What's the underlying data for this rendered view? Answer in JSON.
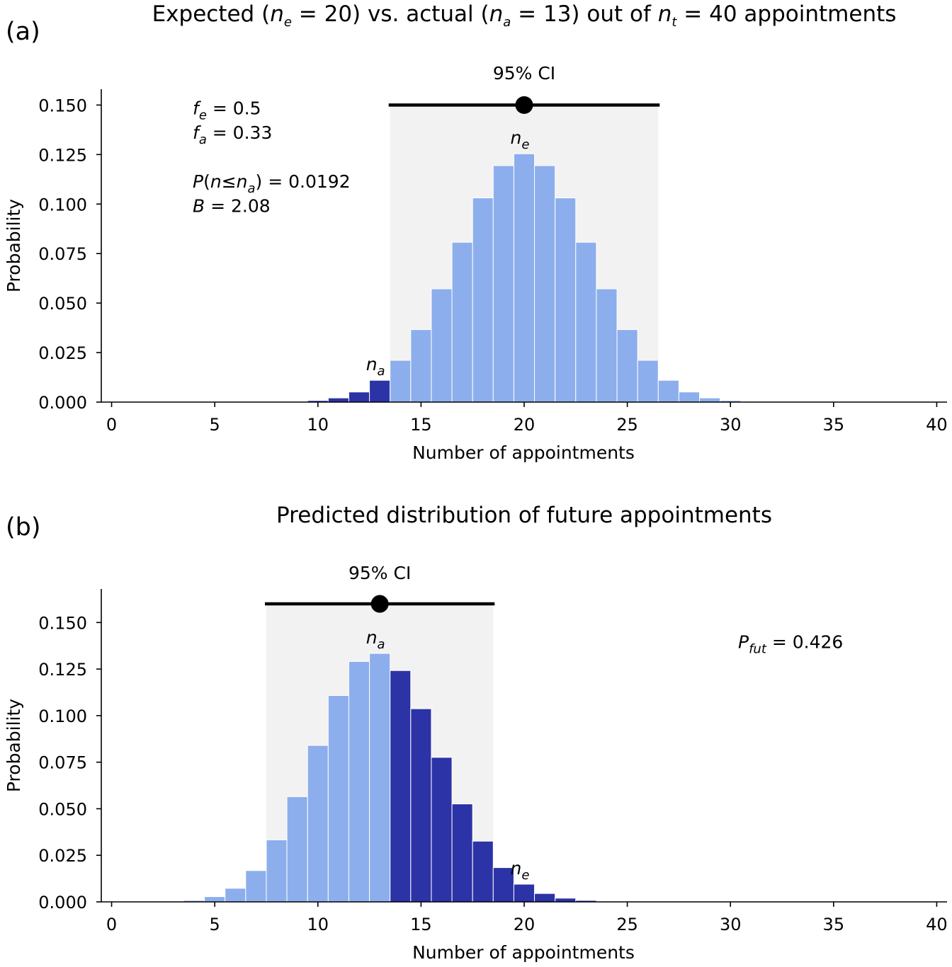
{
  "colors": {
    "light": "#8daeec",
    "dark": "#2c33a6",
    "ci_band": "#f2f2f2",
    "ink": "#000000"
  },
  "chart_data": [
    {
      "type": "bar",
      "panel_label": "(a)",
      "title_parts": [
        "Expected (",
        "n",
        "e",
        " = 20) vs. actual (",
        "n",
        "a",
        " = 13) out of ",
        "n",
        "t",
        " = 40 appointments"
      ],
      "xlabel": "Number of appointments",
      "ylabel": "Probability",
      "xlim": [
        -0.5,
        40.5
      ],
      "ylim": [
        0,
        0.158
      ],
      "xticks": [
        0,
        5,
        10,
        15,
        20,
        25,
        30,
        35,
        40
      ],
      "yticks": [
        0.0,
        0.025,
        0.05,
        0.075,
        0.1,
        0.125,
        0.15
      ],
      "ytick_labels": [
        "0.000",
        "0.025",
        "0.050",
        "0.075",
        "0.100",
        "0.125",
        "0.150"
      ],
      "x": [
        9,
        10,
        11,
        12,
        13,
        14,
        15,
        16,
        17,
        18,
        19,
        20,
        21,
        22,
        23,
        24,
        25,
        26,
        27,
        28,
        29,
        30,
        31
      ],
      "values": [
        0.0002,
        0.0008,
        0.0021,
        0.0051,
        0.011,
        0.0211,
        0.0366,
        0.0572,
        0.0807,
        0.1031,
        0.1194,
        0.1254,
        0.1194,
        0.1031,
        0.0807,
        0.0572,
        0.0366,
        0.0211,
        0.011,
        0.0051,
        0.0021,
        0.0008,
        0.0002
      ],
      "dark_max_x": 13,
      "ci_band": {
        "from": 13.5,
        "to": 26.5
      },
      "ci_line": {
        "from": 13.5,
        "to": 26.5,
        "y": 0.15,
        "point": 20
      },
      "ci_label": "95% CI",
      "bar_labels": [
        {
          "text": "n",
          "sub": "e",
          "x": 20,
          "y": 0.1254
        },
        {
          "text": "n",
          "sub": "a",
          "x": 13,
          "y": 0.011
        }
      ],
      "annotations": [
        {
          "line": 1,
          "text": "f",
          "sub": "e",
          "rest": " = 0.5"
        },
        {
          "line": 2,
          "text": "f",
          "sub": "a",
          "rest": " = 0.33"
        },
        {
          "line": 4,
          "text": "P(n≤n",
          "sub": "a",
          "rest": ") = 0.0192"
        },
        {
          "line": 5,
          "text": "B",
          "sub": "",
          "rest": " = 2.08"
        }
      ]
    },
    {
      "type": "bar",
      "panel_label": "(b)",
      "title_parts": [
        "Predicted distribution of future appointments"
      ],
      "xlabel": "Number of appointments",
      "ylabel": "Probability",
      "xlim": [
        -0.5,
        40.5
      ],
      "ylim": [
        0,
        0.168
      ],
      "xticks": [
        0,
        5,
        10,
        15,
        20,
        25,
        30,
        35,
        40
      ],
      "yticks": [
        0.0,
        0.025,
        0.05,
        0.075,
        0.1,
        0.125,
        0.15
      ],
      "ytick_labels": [
        "0.000",
        "0.025",
        "0.050",
        "0.075",
        "0.100",
        "0.125",
        "0.150"
      ],
      "x": [
        3,
        4,
        5,
        6,
        7,
        8,
        9,
        10,
        11,
        12,
        13,
        14,
        15,
        16,
        17,
        18,
        19,
        20,
        21,
        22,
        23,
        24
      ],
      "values": [
        0.0002,
        0.0008,
        0.0028,
        0.0073,
        0.0168,
        0.0333,
        0.0565,
        0.084,
        0.1108,
        0.1291,
        0.1334,
        0.1242,
        0.1037,
        0.0776,
        0.0526,
        0.0326,
        0.0184,
        0.0095,
        0.0045,
        0.002,
        0.0008,
        0.0003
      ],
      "dark_min_x": 14,
      "ci_band": {
        "from": 7.5,
        "to": 18.5
      },
      "ci_line": {
        "from": 7.5,
        "to": 18.5,
        "y": 0.16,
        "point": 13
      },
      "ci_label": "95% CI",
      "bar_labels": [
        {
          "text": "n",
          "sub": "a",
          "x": 13,
          "y": 0.1334
        },
        {
          "text": "n",
          "sub": "e",
          "x": 20,
          "y": 0.0095
        }
      ],
      "annotations": [
        {
          "line": 1,
          "text": "P",
          "sub": "fut",
          "rest": " = 0.426"
        }
      ]
    }
  ]
}
